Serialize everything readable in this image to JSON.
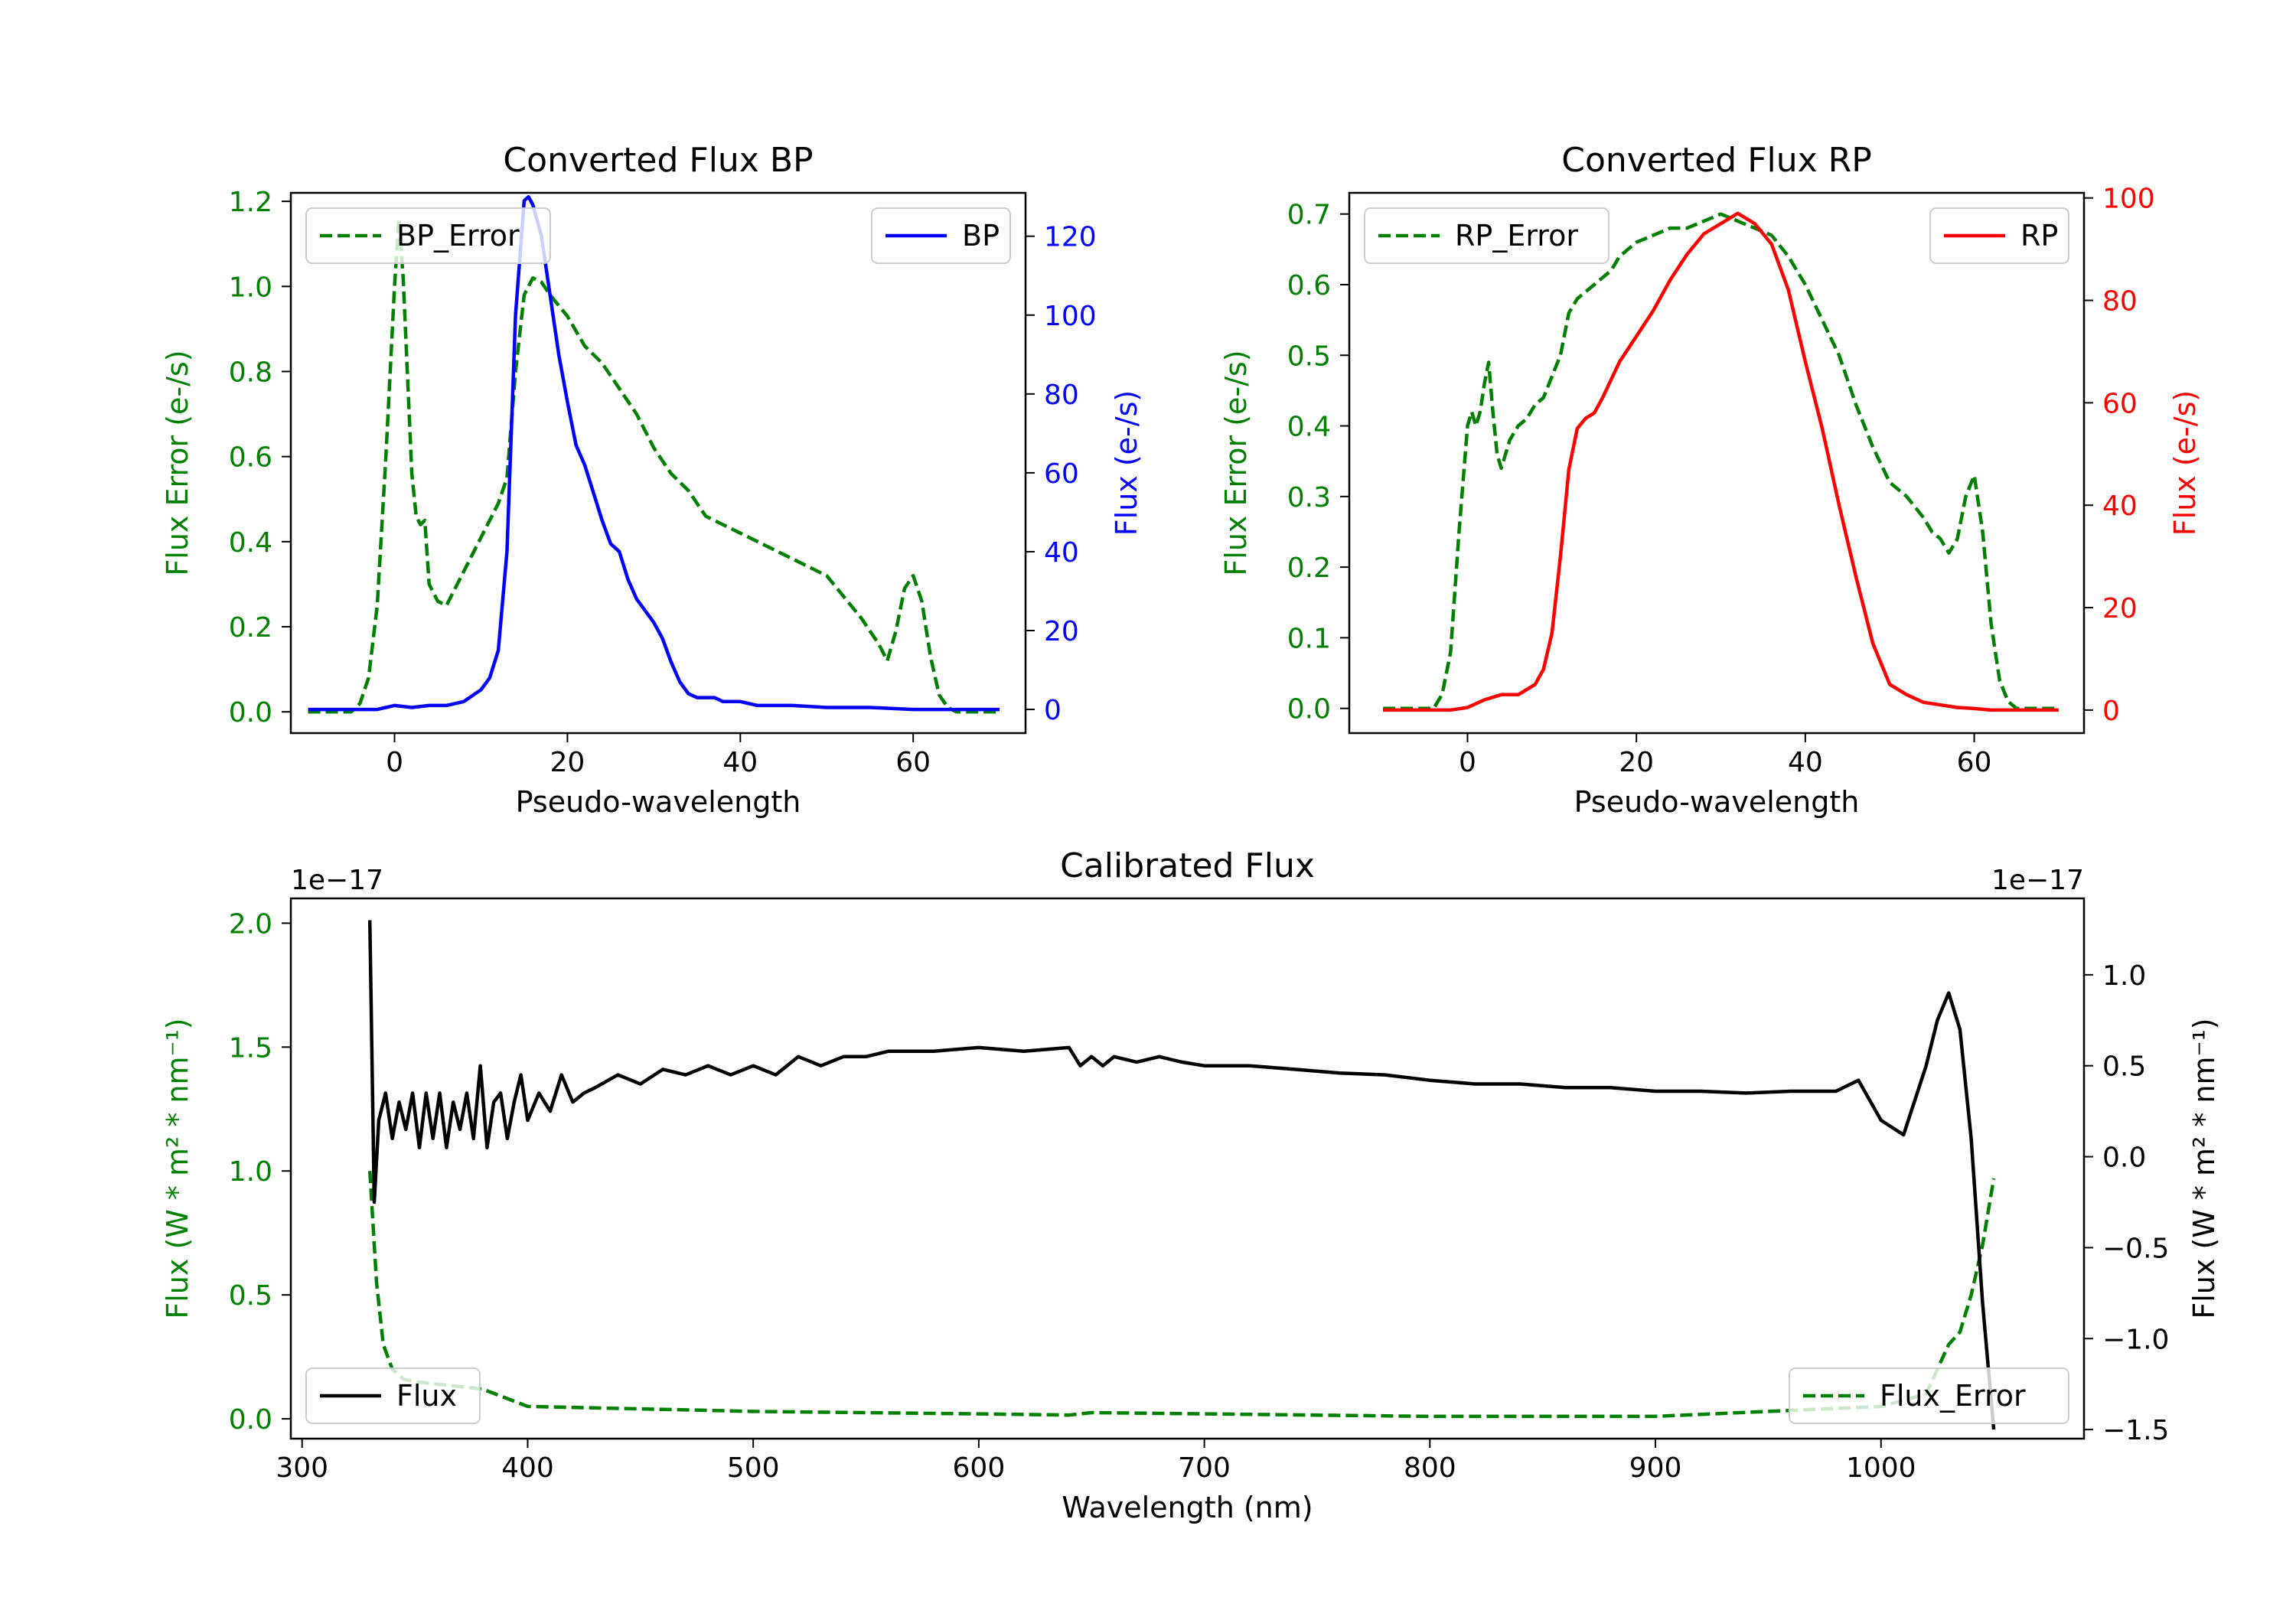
{
  "chart_data": [
    {
      "type": "line",
      "title": "Converted Flux BP",
      "xlabel": "Pseudo-wavelength",
      "xlim": [
        -12,
        73
      ],
      "xticks": [
        0,
        20,
        40,
        60
      ],
      "left_axis": {
        "label": "Flux Error (e-/s)",
        "color": "#008000",
        "ylim": [
          -0.05,
          1.22
        ],
        "ticks": [
          0.0,
          0.2,
          0.4,
          0.6,
          0.8,
          1.0,
          1.2
        ],
        "series_name": "BP_Error",
        "style": "dashed",
        "x": [
          -10,
          -5,
          -4,
          -3,
          -2,
          -1,
          0,
          0.5,
          1,
          2,
          2.5,
          3,
          3.5,
          4,
          5,
          6,
          8,
          10,
          12,
          13,
          14,
          15,
          16,
          17,
          18,
          20,
          22,
          24,
          26,
          28,
          30,
          32,
          34,
          36,
          38,
          40,
          42,
          44,
          46,
          48,
          50,
          52,
          54,
          56,
          57,
          58,
          59,
          60,
          61,
          62,
          63,
          64,
          65,
          70
        ],
        "y": [
          0,
          0,
          0.02,
          0.08,
          0.25,
          0.6,
          1.0,
          1.16,
          1.02,
          0.56,
          0.46,
          0.44,
          0.45,
          0.3,
          0.26,
          0.25,
          0.33,
          0.41,
          0.49,
          0.55,
          0.8,
          0.98,
          1.02,
          1.01,
          0.98,
          0.93,
          0.86,
          0.82,
          0.76,
          0.7,
          0.62,
          0.56,
          0.52,
          0.46,
          0.44,
          0.42,
          0.4,
          0.38,
          0.36,
          0.34,
          0.32,
          0.27,
          0.22,
          0.16,
          0.12,
          0.19,
          0.29,
          0.32,
          0.26,
          0.13,
          0.04,
          0.01,
          0,
          0
        ],
        "legend": "upper left"
      },
      "right_axis": {
        "label": "Flux (e-/s)",
        "color": "#0000ff",
        "ylim": [
          -6,
          131
        ],
        "ticks": [
          0,
          20,
          40,
          60,
          80,
          100,
          120
        ],
        "series_name": "BP",
        "style": "solid",
        "x": [
          -10,
          -2,
          0,
          2,
          4,
          6,
          8,
          10,
          11,
          12,
          13,
          14,
          15,
          15.5,
          16,
          17,
          18,
          19,
          20,
          21,
          22,
          23,
          24,
          25,
          26,
          27,
          28,
          29,
          30,
          31,
          32,
          33,
          34,
          35,
          36,
          37,
          38,
          40,
          42,
          44,
          46,
          50,
          55,
          60,
          70
        ],
        "y": [
          0,
          0,
          1,
          0.5,
          1,
          1,
          2,
          5,
          8,
          15,
          40,
          100,
          129,
          130,
          128,
          120,
          105,
          90,
          78,
          67,
          62,
          55,
          48,
          42,
          40,
          33,
          28,
          25,
          22,
          18,
          12,
          7,
          4,
          3,
          3,
          3,
          2,
          2,
          1,
          1,
          1,
          0.5,
          0.5,
          0,
          0
        ],
        "legend": "upper right"
      }
    },
    {
      "type": "line",
      "title": "Converted Flux RP",
      "xlabel": "Pseudo-wavelength",
      "xlim": [
        -14,
        73
      ],
      "xticks": [
        0,
        20,
        40,
        60
      ],
      "left_axis": {
        "label": "Flux Error (e-/s)",
        "color": "#008000",
        "ylim": [
          -0.035,
          0.73
        ],
        "ticks": [
          0.0,
          0.1,
          0.2,
          0.3,
          0.4,
          0.5,
          0.6,
          0.7
        ],
        "series_name": "RP_Error",
        "style": "dashed",
        "x": [
          -10,
          -4,
          -3,
          -2,
          -1,
          0,
          0.5,
          1,
          1.5,
          2,
          2.5,
          3,
          3.5,
          4,
          5,
          6,
          7,
          8,
          9,
          10,
          11,
          12,
          13,
          14,
          15,
          16,
          17,
          18,
          20,
          22,
          24,
          26,
          28,
          30,
          32,
          34,
          36,
          38,
          40,
          42,
          44,
          46,
          48,
          50,
          52,
          54,
          55,
          56,
          57,
          58,
          59,
          60,
          61,
          62,
          63,
          64,
          65,
          70
        ],
        "y": [
          0,
          0,
          0.02,
          0.08,
          0.25,
          0.4,
          0.42,
          0.4,
          0.42,
          0.46,
          0.49,
          0.42,
          0.36,
          0.34,
          0.38,
          0.4,
          0.41,
          0.43,
          0.44,
          0.47,
          0.5,
          0.56,
          0.58,
          0.59,
          0.6,
          0.61,
          0.62,
          0.64,
          0.66,
          0.67,
          0.68,
          0.68,
          0.69,
          0.7,
          0.69,
          0.68,
          0.67,
          0.64,
          0.6,
          0.55,
          0.5,
          0.43,
          0.37,
          0.32,
          0.3,
          0.27,
          0.25,
          0.24,
          0.22,
          0.24,
          0.3,
          0.33,
          0.25,
          0.12,
          0.04,
          0.01,
          0,
          0
        ],
        "legend": "upper left"
      },
      "right_axis": {
        "label": "Flux (e-/s)",
        "color": "#ff0000",
        "ylim": [
          -4.5,
          101
        ],
        "ticks": [
          0,
          20,
          40,
          60,
          80,
          100
        ],
        "series_name": "RP",
        "style": "solid",
        "x": [
          -10,
          -2,
          0,
          2,
          4,
          6,
          8,
          9,
          10,
          11,
          12,
          13,
          14,
          15,
          16,
          18,
          20,
          22,
          24,
          26,
          28,
          30,
          32,
          34,
          36,
          38,
          40,
          42,
          44,
          46,
          48,
          50,
          52,
          54,
          56,
          58,
          60,
          62,
          70
        ],
        "y": [
          0,
          0,
          0.5,
          2,
          3,
          3,
          5,
          8,
          15,
          30,
          47,
          55,
          57,
          58,
          61,
          68,
          73,
          78,
          84,
          89,
          93,
          95,
          97,
          95,
          91,
          82,
          68,
          55,
          40,
          26,
          13,
          5,
          3,
          1.5,
          1,
          0.5,
          0.3,
          0,
          0
        ],
        "legend": "upper right"
      }
    },
    {
      "type": "line",
      "title": "Calibrated Flux",
      "xlabel": "Wavelength (nm)",
      "xlim": [
        295,
        1090
      ],
      "xticks": [
        300,
        400,
        500,
        600,
        700,
        800,
        900,
        1000
      ],
      "left_axis": {
        "label": "Flux (W * m² * nm⁻¹)",
        "color": "#008000",
        "offset_text": "1e−17",
        "ylim": [
          -0.08,
          2.1
        ],
        "ticks": [
          0.0,
          0.5,
          1.0,
          1.5,
          2.0
        ],
        "series_name": "Flux_Error",
        "style": "dashed",
        "x": [
          330,
          333,
          336,
          340,
          345,
          350,
          360,
          380,
          400,
          450,
          500,
          550,
          600,
          640,
          650,
          700,
          800,
          900,
          1000,
          1020,
          1025,
          1030,
          1035,
          1040,
          1045,
          1050
        ],
        "y": [
          1.0,
          0.55,
          0.3,
          0.2,
          0.16,
          0.15,
          0.14,
          0.12,
          0.05,
          0.04,
          0.03,
          0.025,
          0.02,
          0.015,
          0.025,
          0.02,
          0.01,
          0.01,
          0.05,
          0.1,
          0.2,
          0.3,
          0.35,
          0.5,
          0.7,
          0.97
        ],
        "legend": "lower right"
      },
      "right_axis": {
        "label": "Flux (W * m² * nm⁻¹)",
        "color": "#000000",
        "offset_text": "1e−17",
        "ylim": [
          -1.55,
          1.42
        ],
        "ticks": [
          -1.5,
          -1.0,
          -0.5,
          0.0,
          0.5,
          1.0
        ],
        "tick_labels": [
          "−1.5",
          "−1.0",
          "−0.5",
          "0.0",
          "0.5",
          "1.0"
        ],
        "series_name": "Flux",
        "style": "solid",
        "x": [
          330,
          332,
          334,
          337,
          340,
          343,
          346,
          349,
          352,
          355,
          358,
          361,
          364,
          367,
          370,
          373,
          376,
          379,
          382,
          385,
          388,
          391,
          394,
          397,
          400,
          405,
          410,
          415,
          420,
          425,
          430,
          440,
          450,
          460,
          470,
          480,
          490,
          500,
          510,
          520,
          530,
          540,
          550,
          560,
          580,
          600,
          620,
          640,
          645,
          650,
          655,
          660,
          670,
          680,
          690,
          700,
          720,
          740,
          760,
          780,
          800,
          820,
          840,
          860,
          880,
          900,
          920,
          940,
          960,
          980,
          990,
          1000,
          1010,
          1020,
          1025,
          1030,
          1035,
          1040,
          1045,
          1050
        ],
        "y": [
          1.3,
          -0.25,
          0.2,
          0.35,
          0.1,
          0.3,
          0.15,
          0.35,
          0.05,
          0.35,
          0.1,
          0.35,
          0.05,
          0.3,
          0.15,
          0.35,
          0.1,
          0.5,
          0.05,
          0.3,
          0.35,
          0.1,
          0.3,
          0.45,
          0.2,
          0.35,
          0.25,
          0.45,
          0.3,
          0.35,
          0.38,
          0.45,
          0.4,
          0.48,
          0.45,
          0.5,
          0.45,
          0.5,
          0.45,
          0.55,
          0.5,
          0.55,
          0.55,
          0.58,
          0.58,
          0.6,
          0.58,
          0.6,
          0.5,
          0.55,
          0.5,
          0.55,
          0.52,
          0.55,
          0.52,
          0.5,
          0.5,
          0.48,
          0.46,
          0.45,
          0.42,
          0.4,
          0.4,
          0.38,
          0.38,
          0.36,
          0.36,
          0.35,
          0.36,
          0.36,
          0.42,
          0.2,
          0.12,
          0.5,
          0.75,
          0.9,
          0.7,
          0.1,
          -0.8,
          -1.5
        ],
        "legend": "lower left"
      }
    }
  ]
}
